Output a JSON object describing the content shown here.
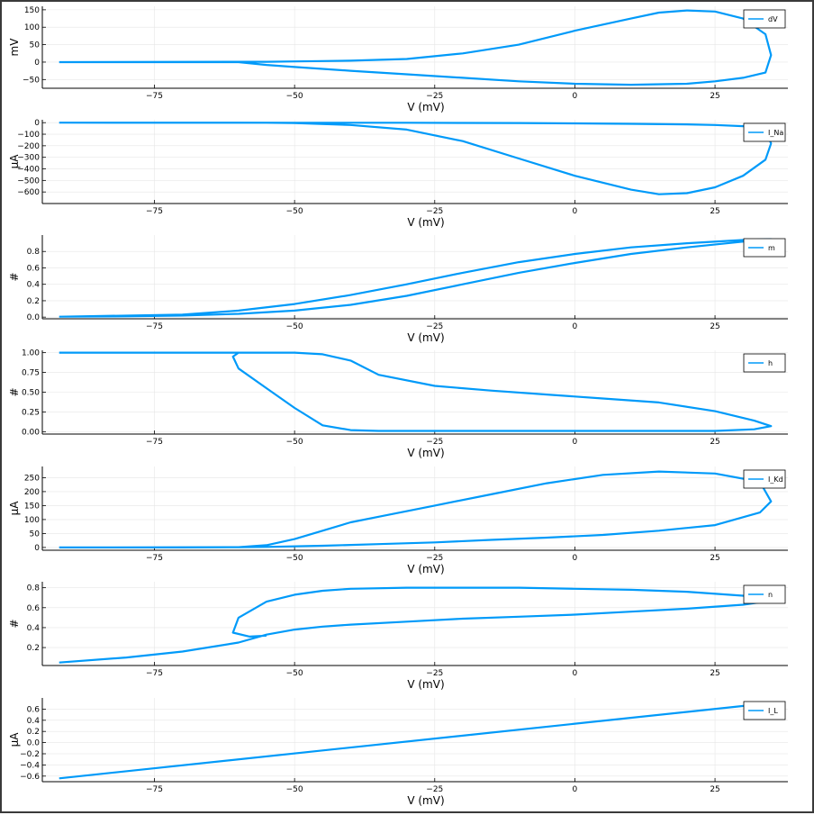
{
  "colors": {
    "series": "#009AF9",
    "axis": "#000000",
    "grid": "#e6e6e6"
  },
  "chart_data": [
    {
      "type": "line",
      "xlabel": "V (mV)",
      "ylabel": "mV",
      "xlim": [
        -95,
        38
      ],
      "ylim": [
        -75,
        160
      ],
      "xticks": [
        "−75",
        "−50",
        "−25",
        "0",
        "25"
      ],
      "yticks": [
        "−50",
        "0",
        "50",
        "100",
        "150"
      ],
      "grid": true,
      "legend_position": "top-right",
      "series": [
        {
          "name": "dV",
          "x": [
            -92,
            -60,
            -55,
            -50,
            -45,
            -40,
            -30,
            -20,
            -10,
            0,
            10,
            15,
            20,
            25,
            30,
            34,
            35,
            34,
            30,
            25,
            20,
            10,
            0,
            -10,
            -20,
            -30,
            -40,
            -50,
            -55,
            -60,
            -92
          ],
          "y": [
            0,
            1,
            1,
            2,
            3,
            4,
            9,
            25,
            50,
            90,
            125,
            142,
            148,
            145,
            125,
            80,
            20,
            -30,
            -45,
            -55,
            -62,
            -65,
            -62,
            -55,
            -45,
            -35,
            -25,
            -14,
            -8,
            0,
            0
          ]
        }
      ]
    },
    {
      "type": "line",
      "xlabel": "V (mV)",
      "ylabel": "µA",
      "xlim": [
        -95,
        38
      ],
      "ylim": [
        -700,
        25
      ],
      "xticks": [
        "−75",
        "−50",
        "−25",
        "0",
        "25"
      ],
      "yticks": [
        "0",
        "−100",
        "−200",
        "−300",
        "−400",
        "−500",
        "−600"
      ],
      "grid": true,
      "legend_position": "top-right",
      "series": [
        {
          "name": "I_Na",
          "x": [
            -92,
            -55,
            -50,
            -40,
            -30,
            -20,
            -10,
            0,
            10,
            15,
            20,
            25,
            30,
            34,
            35,
            34,
            30,
            25,
            20,
            10,
            0,
            -10,
            -20,
            -30,
            -40,
            -50,
            -60,
            -92
          ],
          "y": [
            0,
            -1,
            -3,
            -20,
            -60,
            -160,
            -310,
            -460,
            -580,
            -620,
            -610,
            -560,
            -460,
            -320,
            -180,
            -60,
            -30,
            -20,
            -15,
            -10,
            -6,
            -3,
            -2,
            -1,
            -1,
            -1,
            0,
            0
          ]
        }
      ]
    },
    {
      "type": "line",
      "xlabel": "V (mV)",
      "ylabel": "#",
      "xlim": [
        -95,
        38
      ],
      "ylim": [
        -0.02,
        1.0
      ],
      "xticks": [
        "−75",
        "−50",
        "−25",
        "0",
        "25"
      ],
      "yticks": [
        "0.0",
        "0.2",
        "0.4",
        "0.6",
        "0.8"
      ],
      "grid": true,
      "legend_position": "top-right",
      "series": [
        {
          "name": "m",
          "x": [
            -92,
            -80,
            -70,
            -60,
            -50,
            -40,
            -30,
            -20,
            -10,
            0,
            10,
            20,
            30,
            35,
            30,
            20,
            10,
            0,
            -10,
            -20,
            -30,
            -40,
            -50,
            -60,
            -70,
            -92
          ],
          "y": [
            0.005,
            0.01,
            0.02,
            0.04,
            0.08,
            0.15,
            0.26,
            0.4,
            0.54,
            0.66,
            0.77,
            0.85,
            0.92,
            0.95,
            0.94,
            0.9,
            0.85,
            0.77,
            0.67,
            0.54,
            0.4,
            0.27,
            0.16,
            0.08,
            0.03,
            0.005
          ]
        }
      ]
    },
    {
      "type": "line",
      "xlabel": "V (mV)",
      "ylabel": "#",
      "xlim": [
        -95,
        38
      ],
      "ylim": [
        -0.03,
        1.03
      ],
      "xticks": [
        "−75",
        "−50",
        "−25",
        "0",
        "25"
      ],
      "yticks": [
        "0.00",
        "0.25",
        "0.50",
        "0.75",
        "1.00"
      ],
      "grid": true,
      "legend_position": "top-right",
      "series": [
        {
          "name": "h",
          "x": [
            -92,
            -70,
            -60,
            -55,
            -50,
            -45,
            -40,
            -35,
            -25,
            -15,
            -5,
            5,
            15,
            25,
            32,
            35,
            32,
            25,
            15,
            5,
            -5,
            -15,
            -25,
            -35,
            -40,
            -45,
            -50,
            -55,
            -60,
            -61,
            -60,
            -58
          ],
          "y": [
            1.0,
            1.0,
            1.0,
            1.0,
            1.0,
            0.98,
            0.9,
            0.72,
            0.58,
            0.52,
            0.47,
            0.42,
            0.37,
            0.26,
            0.14,
            0.07,
            0.03,
            0.01,
            0.01,
            0.01,
            0.01,
            0.01,
            0.01,
            0.01,
            0.02,
            0.08,
            0.3,
            0.55,
            0.8,
            0.95,
            1.0,
            1.0
          ]
        }
      ]
    },
    {
      "type": "line",
      "xlabel": "V (mV)",
      "ylabel": "µA",
      "xlim": [
        -95,
        38
      ],
      "ylim": [
        -10,
        290
      ],
      "xticks": [
        "−75",
        "−50",
        "−25",
        "0",
        "25"
      ],
      "yticks": [
        "0",
        "50",
        "100",
        "150",
        "200",
        "250"
      ],
      "grid": true,
      "legend_position": "top-right",
      "series": [
        {
          "name": "I_Kd",
          "x": [
            -92,
            -70,
            -60,
            -55,
            -50,
            -45,
            -40,
            -35,
            -25,
            -15,
            -5,
            5,
            15,
            25,
            33,
            35,
            33,
            25,
            15,
            5,
            -5,
            -15,
            -25,
            -35,
            -45,
            -55,
            -60,
            -92
          ],
          "y": [
            0,
            0,
            1,
            8,
            30,
            60,
            90,
            110,
            150,
            190,
            230,
            260,
            272,
            265,
            235,
            165,
            125,
            80,
            60,
            45,
            35,
            27,
            18,
            12,
            6,
            2,
            1,
            0
          ]
        }
      ]
    },
    {
      "type": "line",
      "xlabel": "V (mV)",
      "ylabel": "#",
      "xlim": [
        -95,
        38
      ],
      "ylim": [
        0.02,
        0.86
      ],
      "xticks": [
        "−75",
        "−50",
        "−25",
        "0",
        "25"
      ],
      "yticks": [
        "0.2",
        "0.4",
        "0.6",
        "0.8"
      ],
      "grid": true,
      "legend_position": "top-right",
      "series": [
        {
          "name": "n",
          "x": [
            -92,
            -80,
            -70,
            -60,
            -55,
            -50,
            -45,
            -40,
            -30,
            -20,
            -10,
            0,
            10,
            20,
            30,
            35,
            30,
            20,
            10,
            0,
            -10,
            -20,
            -30,
            -40,
            -45,
            -50,
            -55,
            -60,
            -61,
            -58,
            -55
          ],
          "y": [
            0.05,
            0.1,
            0.16,
            0.25,
            0.33,
            0.38,
            0.41,
            0.43,
            0.46,
            0.49,
            0.51,
            0.53,
            0.56,
            0.59,
            0.63,
            0.67,
            0.72,
            0.76,
            0.78,
            0.79,
            0.8,
            0.8,
            0.8,
            0.79,
            0.77,
            0.73,
            0.66,
            0.5,
            0.35,
            0.31,
            0.32
          ]
        }
      ]
    },
    {
      "type": "line",
      "xlabel": "V (mV)",
      "ylabel": "µA",
      "xlim": [
        -95,
        38
      ],
      "ylim": [
        -0.7,
        0.8
      ],
      "xticks": [
        "−75",
        "−50",
        "−25",
        "0",
        "25"
      ],
      "yticks": [
        "−0.6",
        "−0.4",
        "−0.2",
        "0.0",
        "0.2",
        "0.4",
        "0.6"
      ],
      "grid": true,
      "legend_position": "top-right",
      "series": [
        {
          "name": "I_L",
          "x": [
            -92,
            35
          ],
          "y": [
            -0.64,
            0.71
          ]
        }
      ]
    }
  ]
}
